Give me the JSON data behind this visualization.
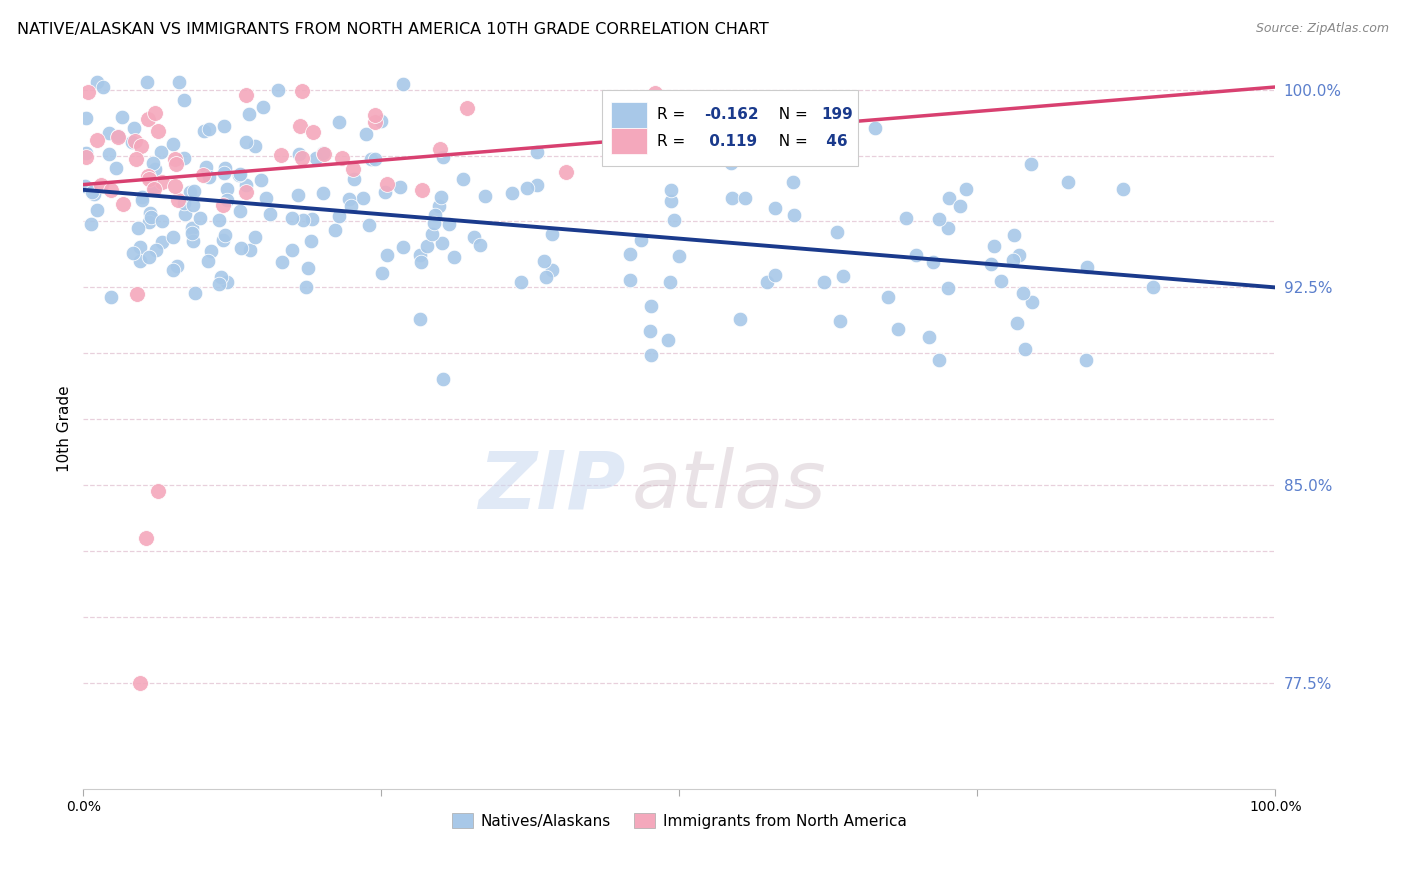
{
  "title": "NATIVE/ALASKAN VS IMMIGRANTS FROM NORTH AMERICA 10TH GRADE CORRELATION CHART",
  "source": "Source: ZipAtlas.com",
  "ylabel": "10th Grade",
  "xlim": [
    0.0,
    1.0
  ],
  "ylim": [
    0.735,
    1.008
  ],
  "blue_R": -0.162,
  "blue_N": 199,
  "pink_R": 0.119,
  "pink_N": 46,
  "blue_color": "#A8C8E8",
  "pink_color": "#F4A8BC",
  "blue_line_color": "#1A3A8C",
  "pink_line_color": "#D84070",
  "legend_label_blue": "Natives/Alaskans",
  "legend_label_pink": "Immigrants from North America",
  "watermark_zip": "ZIP",
  "watermark_atlas": "atlas",
  "title_fontsize": 11.5,
  "axis_tick_color": "#5B7FCC",
  "grid_color": "#E8D0DC",
  "background_color": "#FFFFFF",
  "blue_trend_start_y": 0.962,
  "blue_trend_end_y": 0.925,
  "pink_trend_start_y": 0.964,
  "pink_trend_end_y": 1.001,
  "ytick_vals": [
    0.775,
    0.8,
    0.825,
    0.85,
    0.875,
    0.9,
    0.925,
    0.95,
    0.975,
    1.0
  ],
  "ytick_show": [
    true,
    false,
    false,
    true,
    false,
    false,
    true,
    false,
    false,
    true
  ],
  "ytick_labels": [
    "77.5%",
    "",
    "",
    "85.0%",
    "",
    "",
    "92.5%",
    "",
    "",
    "100.0%"
  ]
}
